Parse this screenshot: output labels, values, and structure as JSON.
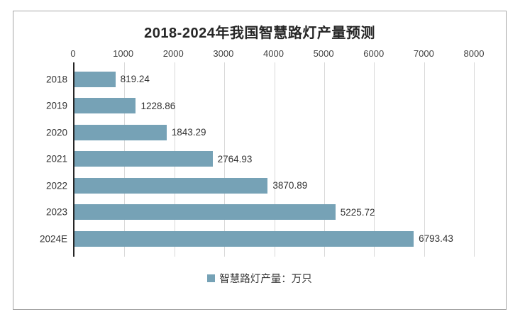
{
  "chart_data": {
    "type": "bar",
    "orientation": "horizontal",
    "title": "2018-2024年我国智慧路灯产量预测",
    "categories": [
      "2018",
      "2019",
      "2020",
      "2021",
      "2022",
      "2023",
      "2024E"
    ],
    "values": [
      819.24,
      1228.86,
      1843.29,
      2764.93,
      3870.89,
      5225.72,
      6793.43
    ],
    "value_labels": [
      "819.24",
      "1228.86",
      "1843.29",
      "2764.93",
      "3870.89",
      "5225.72",
      "6793.43"
    ],
    "xlabel": "",
    "ylabel": "",
    "xlim": [
      0,
      8000
    ],
    "x_ticks": [
      0,
      1000,
      2000,
      3000,
      4000,
      5000,
      6000,
      7000,
      8000
    ],
    "x_tick_labels": [
      "0",
      "1000",
      "2000",
      "3000",
      "4000",
      "5000",
      "6000",
      "7000",
      "8000"
    ],
    "grid": true,
    "legend_position": "bottom",
    "legend": {
      "label": "智慧路灯产量：万只",
      "marker_color": "#76a2b6"
    },
    "bar_color": "#76a2b6"
  },
  "colors": {
    "bar": "#76a2b6",
    "gridline": "#d9d9d9",
    "axis_line": "#262626",
    "frame_border": "#a6a6a6",
    "text": "#333333"
  }
}
